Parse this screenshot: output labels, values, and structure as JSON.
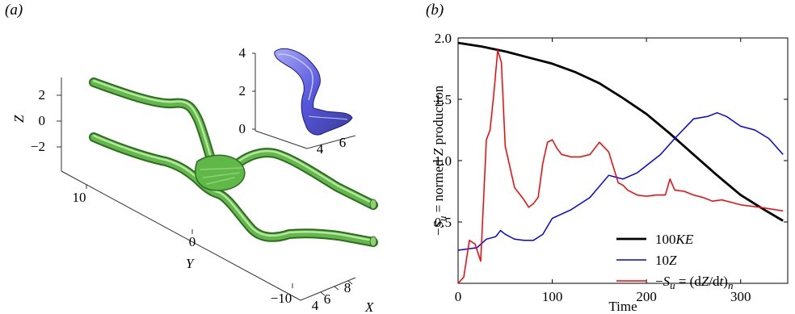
{
  "panels": {
    "a": {
      "label": "(a)"
    },
    "b": {
      "label": "(b)"
    }
  },
  "panel_a": {
    "axes": {
      "z_label": "Z",
      "y_label": "Y",
      "x_label": "X"
    },
    "z_ticks": [
      "2",
      "0",
      "−2"
    ],
    "y_ticks": [
      "10",
      "0",
      "−10"
    ],
    "x_ticks": [
      "4",
      "6",
      "8"
    ],
    "inset": {
      "z_ticks": [
        "4",
        "2",
        "0"
      ],
      "x_ticks": [
        "4",
        "6"
      ]
    },
    "colors": {
      "tubes": "#4ea63a",
      "inset_surface": "#3a3ad8"
    }
  },
  "chart_data": {
    "type": "line",
    "xlabel": "Time",
    "ylabel": "−S_u = normed Z production",
    "xlim": [
      0,
      350
    ],
    "ylim": [
      0,
      2.0
    ],
    "x_ticks": [
      0,
      100,
      200,
      300
    ],
    "x_tick_labels": [
      "0",
      "100",
      "200",
      "300"
    ],
    "y_ticks": [
      0.5,
      1.0,
      1.5,
      2.0
    ],
    "y_tick_labels": [
      "0.5",
      "1.0",
      "1.5",
      "2.0"
    ],
    "legend_position": "lower-right",
    "series": [
      {
        "name": "100KE",
        "color": "#000000",
        "x": [
          0,
          25,
          50,
          75,
          100,
          125,
          150,
          175,
          200,
          225,
          250,
          275,
          300,
          325,
          345
        ],
        "y": [
          1.96,
          1.93,
          1.89,
          1.84,
          1.79,
          1.72,
          1.63,
          1.51,
          1.38,
          1.22,
          1.05,
          0.88,
          0.72,
          0.6,
          0.51
        ]
      },
      {
        "name": "10Z",
        "color": "#0000ff",
        "x": [
          0,
          20,
          30,
          40,
          45,
          50,
          60,
          70,
          80,
          90,
          100,
          120,
          140,
          160,
          175,
          190,
          200,
          215,
          230,
          250,
          265,
          275,
          285,
          300,
          315,
          330,
          345
        ],
        "y": [
          0.27,
          0.29,
          0.36,
          0.38,
          0.43,
          0.4,
          0.36,
          0.35,
          0.35,
          0.4,
          0.53,
          0.6,
          0.7,
          0.88,
          0.85,
          0.9,
          0.96,
          1.05,
          1.18,
          1.34,
          1.36,
          1.39,
          1.36,
          1.28,
          1.25,
          1.18,
          1.05
        ]
      },
      {
        "name": "−S_u = (dZ/dt)_n",
        "color": "#ff0000",
        "x": [
          0,
          6,
          12,
          18,
          24,
          30,
          34,
          38,
          42,
          46,
          50,
          55,
          60,
          65,
          70,
          75,
          80,
          85,
          90,
          95,
          100,
          105,
          110,
          115,
          120,
          130,
          140,
          150,
          160,
          170,
          175,
          180,
          190,
          200,
          210,
          220,
          225,
          230,
          240,
          250,
          260,
          270,
          280,
          300,
          320,
          345
        ],
        "y": [
          0.0,
          0.05,
          0.35,
          0.32,
          0.18,
          1.17,
          1.25,
          1.55,
          1.9,
          1.8,
          1.12,
          0.95,
          0.78,
          0.73,
          0.68,
          0.62,
          0.65,
          0.7,
          0.98,
          1.15,
          1.17,
          1.1,
          1.05,
          1.04,
          1.03,
          1.03,
          1.05,
          1.15,
          1.07,
          0.82,
          0.8,
          0.76,
          0.72,
          0.71,
          0.72,
          0.72,
          0.85,
          0.76,
          0.75,
          0.72,
          0.7,
          0.67,
          0.68,
          0.64,
          0.62,
          0.59
        ]
      }
    ]
  }
}
